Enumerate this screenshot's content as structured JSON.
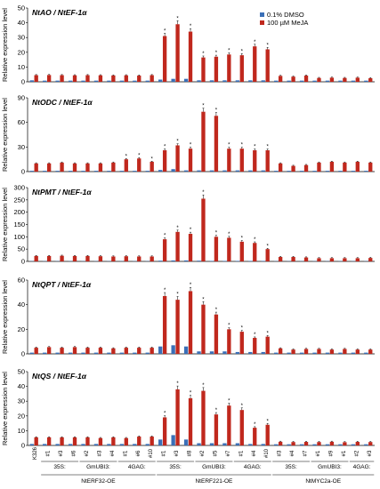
{
  "figure_title": "",
  "legend": [
    {
      "label": "0.1% DMSO",
      "color": "#3a6fb7"
    },
    {
      "label": "100 µM MeJA",
      "color": "#c0281d"
    }
  ],
  "colors": {
    "dmso": "#3a6fb7",
    "meja": "#c0281d",
    "axis": "#000000"
  },
  "x_axis": {
    "lines": [
      "K326",
      "#1",
      "#3",
      "#6",
      "#2",
      "#3",
      "#4",
      "#1",
      "#6",
      "#10",
      "#1",
      "#3",
      "#8",
      "#2",
      "#5",
      "#7",
      "#1",
      "#4",
      "#10",
      "#3",
      "#4",
      "#7",
      "#1",
      "#9",
      "#1",
      "#2",
      "#3"
    ],
    "promoter_groups": [
      {
        "label": "35S:",
        "first": 1,
        "last": 3
      },
      {
        "label": "GmUBI3:",
        "first": 4,
        "last": 6
      },
      {
        "label": "4GAG:",
        "first": 7,
        "last": 9
      },
      {
        "label": "35S:",
        "first": 10,
        "last": 12
      },
      {
        "label": "GmUBI3:",
        "first": 13,
        "last": 15
      },
      {
        "label": "4GAG:",
        "first": 16,
        "last": 18
      },
      {
        "label": "35S:",
        "first": 19,
        "last": 21
      },
      {
        "label": "GmUBI3:",
        "first": 22,
        "last": 24
      },
      {
        "label": "4GAG:",
        "first": 25,
        "last": 26
      }
    ],
    "constructs": [
      {
        "label": "NtERF32-OE",
        "first": 1,
        "last": 9
      },
      {
        "label": "NtERF221-OE",
        "first": 10,
        "last": 18
      },
      {
        "label": "NtMYC2a-OE",
        "first": 19,
        "last": 26
      }
    ]
  },
  "chart_data": [
    {
      "type": "bar",
      "title": "NtAO / NtEF-1α",
      "ylabel": "Relative expression level",
      "ylim": [
        0,
        50
      ],
      "yticks": [
        0,
        10,
        20,
        30,
        40,
        50
      ],
      "categories": [
        "K326",
        "#1",
        "#3",
        "#6",
        "#2",
        "#3",
        "#4",
        "#1",
        "#6",
        "#10",
        "#1",
        "#3",
        "#8",
        "#2",
        "#5",
        "#7",
        "#1",
        "#4",
        "#10",
        "#3",
        "#4",
        "#7",
        "#1",
        "#9",
        "#1",
        "#2",
        "#3"
      ],
      "series": [
        {
          "name": "0.1% DMSO",
          "values": [
            1,
            0.8,
            0.8,
            0.8,
            0.8,
            0.8,
            0.8,
            0.8,
            0.8,
            0.8,
            1.5,
            2,
            2,
            1,
            1,
            1,
            1,
            1,
            1,
            0.8,
            0.8,
            0.8,
            0.8,
            0.8,
            0.8,
            0.8,
            0.8
          ]
        },
        {
          "name": "100 µM MeJA",
          "values": [
            4.5,
            4.6,
            4.5,
            4.4,
            4.5,
            4.4,
            4.3,
            4.4,
            4.2,
            4.5,
            31,
            39,
            34,
            16.5,
            17,
            18.5,
            18,
            24,
            22,
            4,
            3.5,
            4.2,
            2.6,
            2.8,
            2.6,
            2.8,
            2.4
          ]
        }
      ],
      "significant": [
        false,
        false,
        false,
        false,
        false,
        false,
        false,
        false,
        false,
        false,
        true,
        true,
        true,
        true,
        true,
        true,
        true,
        true,
        true,
        false,
        false,
        false,
        false,
        false,
        false,
        false,
        false
      ]
    },
    {
      "type": "bar",
      "title": "NtODC / NtEF-1α",
      "ylabel": "Relative expression level",
      "ylim": [
        0,
        90
      ],
      "yticks": [
        0,
        30,
        60,
        90
      ],
      "categories": [
        "K326",
        "#1",
        "#3",
        "#6",
        "#2",
        "#3",
        "#4",
        "#1",
        "#6",
        "#10",
        "#1",
        "#3",
        "#8",
        "#2",
        "#5",
        "#7",
        "#1",
        "#4",
        "#10",
        "#3",
        "#4",
        "#7",
        "#1",
        "#9",
        "#1",
        "#2",
        "#3"
      ],
      "series": [
        {
          "name": "0.1% DMSO",
          "values": [
            1,
            1,
            1,
            1,
            1,
            1,
            1,
            1,
            1,
            1,
            2,
            3,
            1.5,
            1.5,
            1.5,
            1.5,
            1.5,
            1.5,
            1.5,
            1,
            1,
            1,
            1,
            1,
            1,
            1,
            1
          ]
        },
        {
          "name": "100 µM MeJA",
          "values": [
            10,
            10,
            11,
            10,
            10,
            10,
            11,
            15,
            16,
            12,
            26,
            32,
            28,
            73,
            68,
            28,
            28,
            26,
            26,
            10,
            7,
            8,
            11,
            12,
            11,
            12,
            11
          ]
        }
      ],
      "significant": [
        false,
        false,
        false,
        false,
        false,
        false,
        false,
        true,
        true,
        true,
        true,
        true,
        true,
        true,
        true,
        true,
        true,
        true,
        true,
        false,
        false,
        false,
        false,
        false,
        false,
        false,
        false
      ]
    },
    {
      "type": "bar",
      "title": "NtPMT / NtEF-1α",
      "ylabel": "Relative expression level",
      "ylim": [
        0,
        300
      ],
      "yticks": [
        0,
        50,
        100,
        150,
        200,
        250,
        300
      ],
      "categories": [
        "K326",
        "#1",
        "#3",
        "#6",
        "#2",
        "#3",
        "#4",
        "#1",
        "#6",
        "#10",
        "#1",
        "#3",
        "#8",
        "#2",
        "#5",
        "#7",
        "#1",
        "#4",
        "#10",
        "#3",
        "#4",
        "#7",
        "#1",
        "#9",
        "#1",
        "#2",
        "#3"
      ],
      "series": [
        {
          "name": "0.1% DMSO",
          "values": [
            1,
            1,
            1,
            1,
            1,
            1,
            1,
            1,
            1,
            1,
            3,
            4,
            4,
            3,
            2,
            2,
            2,
            2,
            2,
            1,
            1,
            1,
            1,
            1,
            1,
            1,
            1
          ]
        },
        {
          "name": "100 µM MeJA",
          "values": [
            22,
            22,
            23,
            22,
            22,
            21,
            20,
            21,
            20,
            20,
            90,
            120,
            112,
            255,
            100,
            96,
            80,
            75,
            50,
            18,
            18,
            16,
            13,
            13,
            13,
            13,
            14
          ]
        }
      ],
      "significant": [
        false,
        false,
        false,
        false,
        false,
        false,
        false,
        false,
        false,
        false,
        true,
        true,
        true,
        true,
        true,
        true,
        true,
        true,
        true,
        false,
        false,
        false,
        false,
        false,
        false,
        false,
        false
      ]
    },
    {
      "type": "bar",
      "title": "NtQPT / NtEF-1α",
      "ylabel": "Relative expression level",
      "ylim": [
        0,
        60
      ],
      "yticks": [
        0,
        20,
        40,
        60
      ],
      "categories": [
        "K326",
        "#1",
        "#3",
        "#6",
        "#2",
        "#3",
        "#4",
        "#1",
        "#6",
        "#10",
        "#1",
        "#3",
        "#8",
        "#2",
        "#5",
        "#7",
        "#1",
        "#4",
        "#10",
        "#3",
        "#4",
        "#7",
        "#1",
        "#9",
        "#1",
        "#2",
        "#3"
      ],
      "series": [
        {
          "name": "0.1% DMSO",
          "values": [
            1,
            1,
            1,
            1,
            1,
            1,
            1,
            1,
            1,
            1,
            6,
            7,
            6,
            2,
            2,
            2,
            1.5,
            1.5,
            1.5,
            1,
            1,
            1,
            1,
            1,
            1,
            1,
            1
          ]
        },
        {
          "name": "100 µM MeJA",
          "values": [
            5,
            5.5,
            5,
            5.5,
            5,
            5,
            4.5,
            5,
            5,
            5,
            47,
            44,
            51,
            40,
            32,
            20,
            18,
            13,
            14,
            4.5,
            3.5,
            4,
            4,
            3.5,
            4,
            3.5,
            3.5
          ]
        }
      ],
      "significant": [
        false,
        false,
        false,
        false,
        false,
        false,
        false,
        false,
        false,
        false,
        true,
        true,
        true,
        true,
        true,
        true,
        true,
        true,
        true,
        false,
        false,
        false,
        false,
        false,
        false,
        false,
        false
      ]
    },
    {
      "type": "bar",
      "title": "NtQS / NtEF-1α",
      "ylabel": "Relative expression level",
      "ylim": [
        0,
        50
      ],
      "yticks": [
        0,
        10,
        20,
        30,
        40,
        50
      ],
      "categories": [
        "K326",
        "#1",
        "#3",
        "#6",
        "#2",
        "#3",
        "#4",
        "#1",
        "#6",
        "#10",
        "#1",
        "#3",
        "#8",
        "#2",
        "#5",
        "#7",
        "#1",
        "#4",
        "#10",
        "#3",
        "#4",
        "#7",
        "#1",
        "#9",
        "#1",
        "#2",
        "#3"
      ],
      "series": [
        {
          "name": "0.1% DMSO",
          "values": [
            1,
            1,
            1,
            1,
            1,
            1,
            1,
            1,
            1,
            1,
            4,
            7,
            4,
            1.5,
            1.5,
            1.5,
            1.5,
            1,
            1,
            0.8,
            0.8,
            0.8,
            0.8,
            0.8,
            0.8,
            0.8,
            0.8
          ]
        },
        {
          "name": "100 µM MeJA",
          "values": [
            5.5,
            5.5,
            5.5,
            5.5,
            5.5,
            5,
            5.5,
            5,
            6,
            6,
            19,
            38,
            32,
            37,
            21,
            27,
            24,
            12,
            14,
            2.5,
            2.3,
            2.4,
            2.3,
            2.5,
            2.2,
            2.4,
            2.3
          ]
        }
      ],
      "significant": [
        false,
        false,
        false,
        false,
        false,
        false,
        false,
        false,
        false,
        false,
        true,
        true,
        true,
        true,
        true,
        true,
        true,
        true,
        true,
        false,
        false,
        false,
        false,
        false,
        false,
        false,
        false
      ]
    }
  ]
}
